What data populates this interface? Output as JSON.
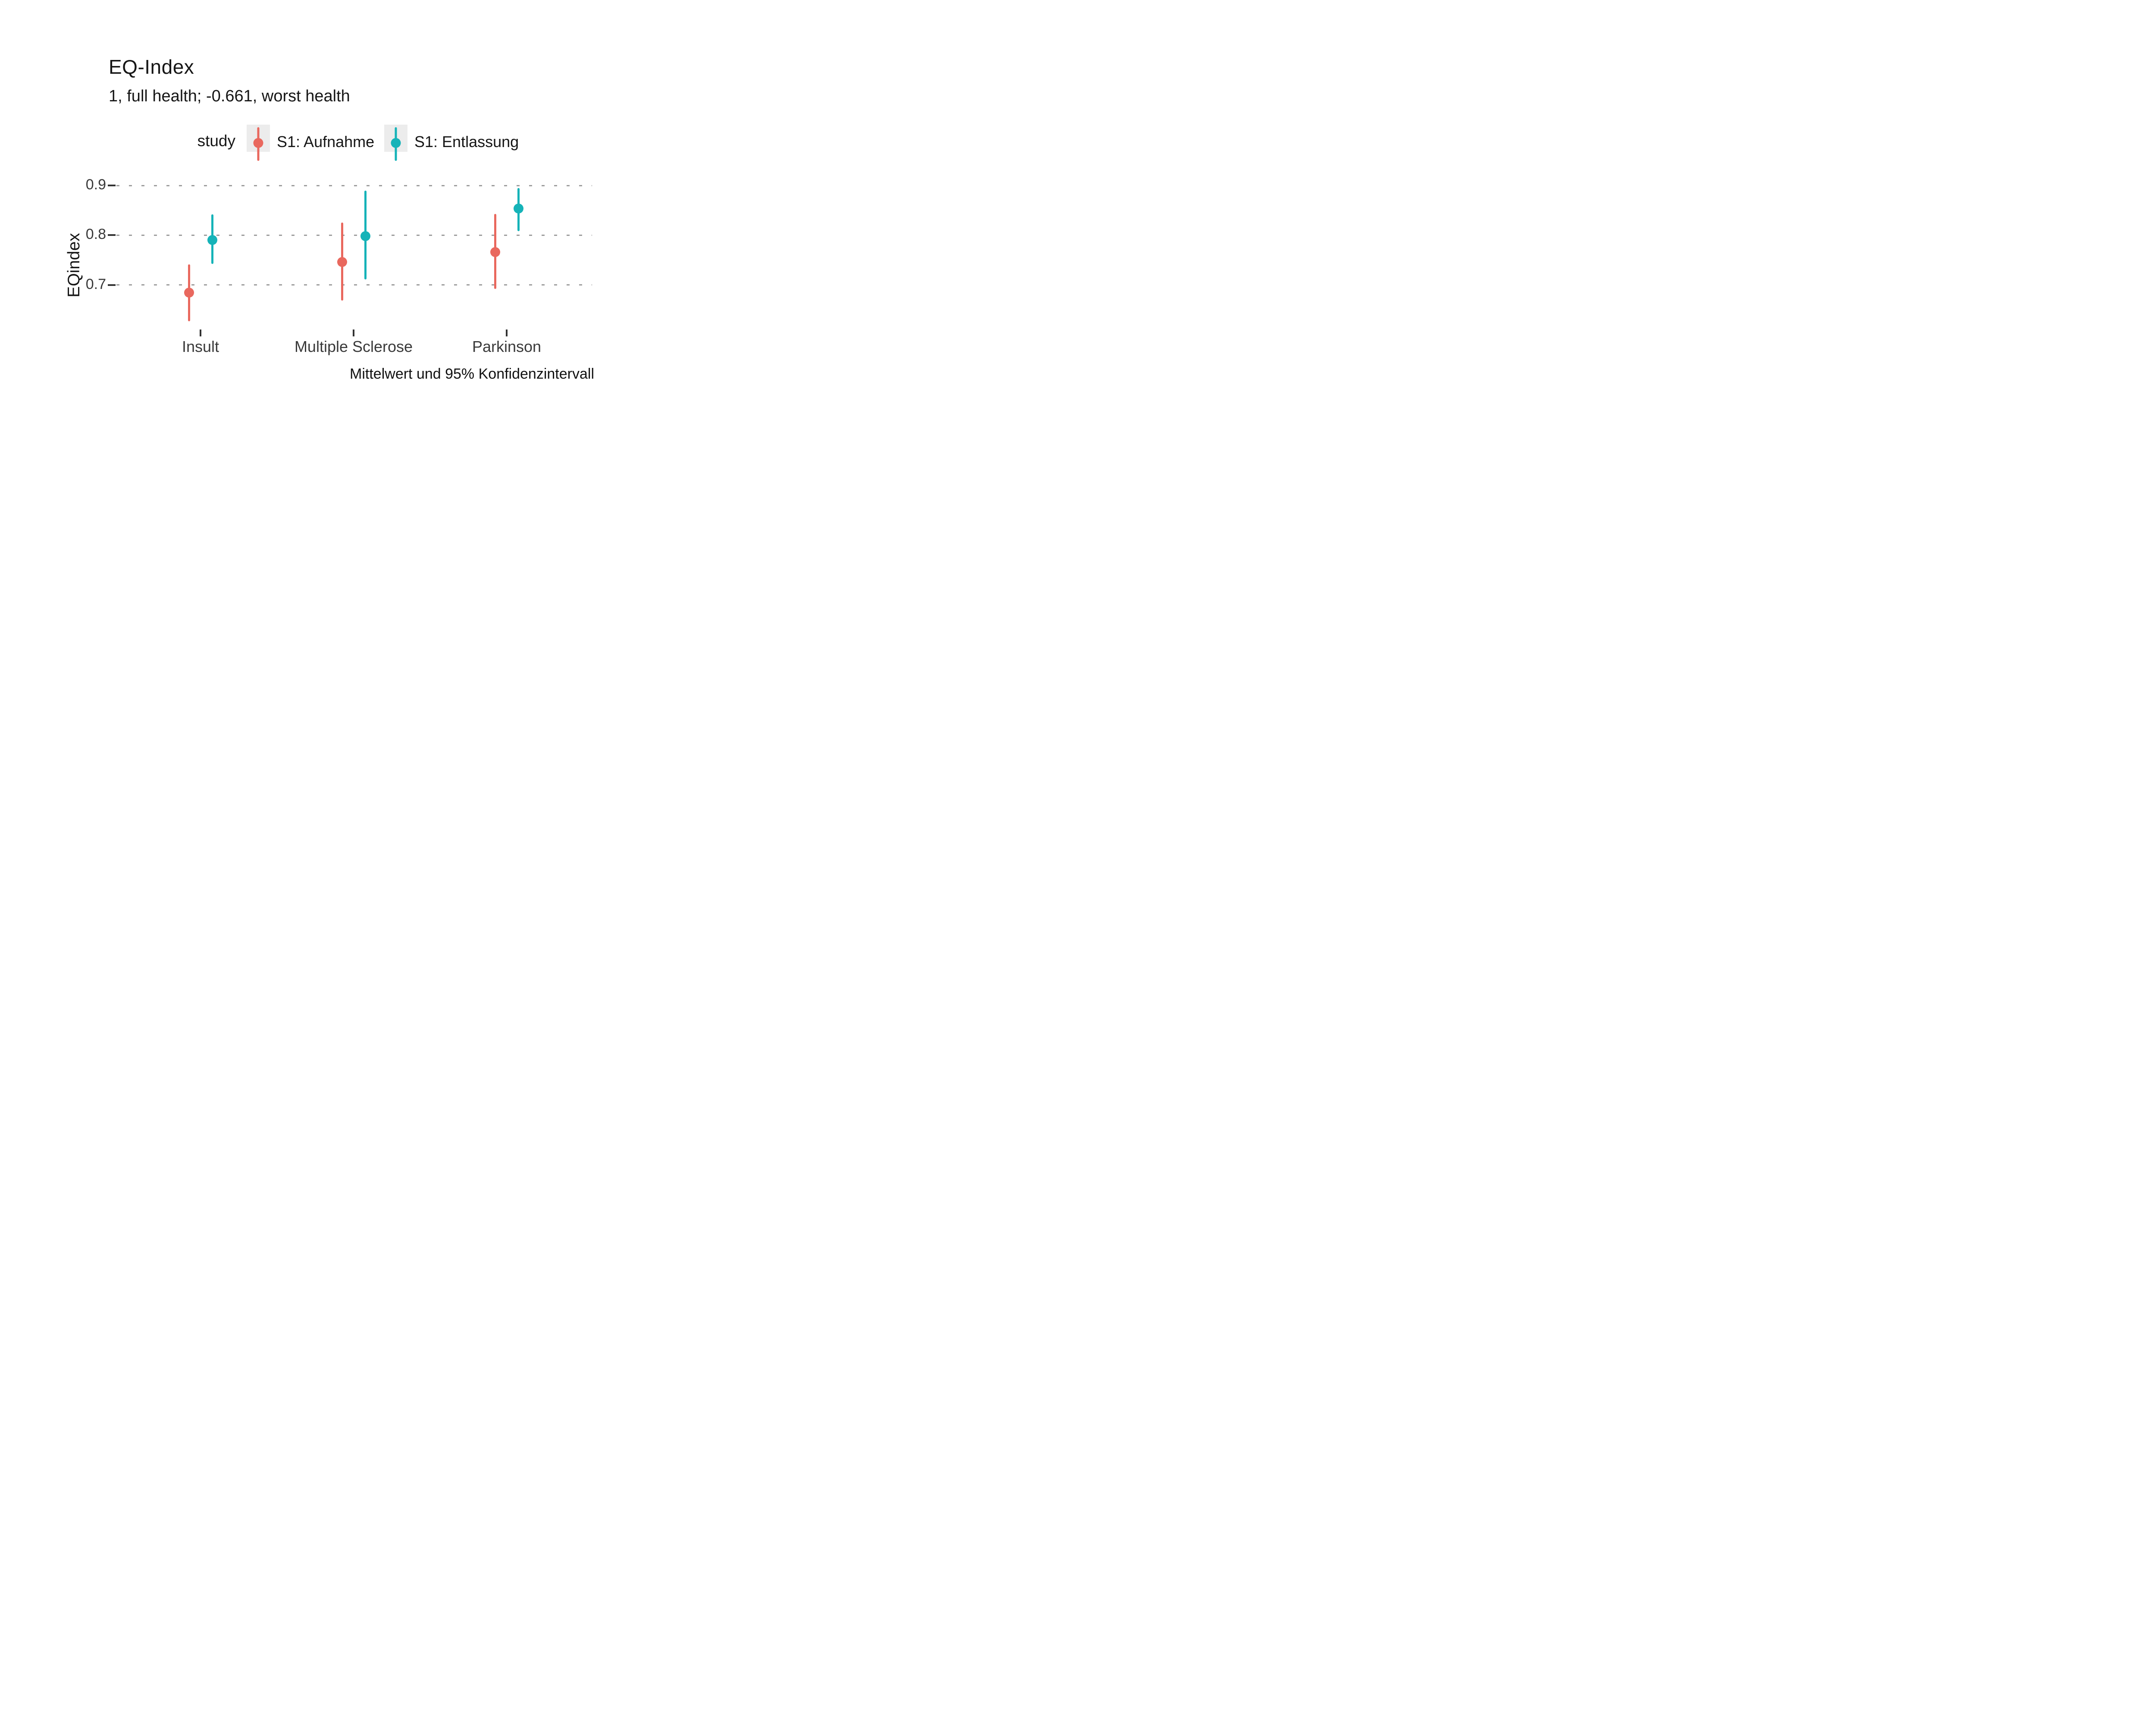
{
  "header": {
    "title": "EQ-Index",
    "subtitle": "1, full health; -0.661, worst health"
  },
  "legend": {
    "title": "study",
    "entries": [
      {
        "label": "S1: Aufnahme",
        "color": "#E9685E",
        "glyph": "pointrange-icon",
        "key_bg": "#ECECEC"
      },
      {
        "label": "S1: Entlassung",
        "color": "#15B3B8",
        "glyph": "pointrange-icon",
        "key_bg": "#ECECEC"
      }
    ]
  },
  "chart_data": {
    "type": "pointrange",
    "title": "EQ-Index",
    "subtitle": "1, full health; -0.661, worst health",
    "categories": [
      "Insult",
      "Multiple Sclerose",
      "Parkinson"
    ],
    "series": [
      {
        "name": "S1: Aufnahme",
        "color": "#E9685E",
        "points": [
          {
            "category": "Insult",
            "mean": 0.684,
            "lower": 0.627,
            "upper": 0.741
          },
          {
            "category": "Multiple Sclerose",
            "mean": 0.746,
            "lower": 0.668,
            "upper": 0.825
          },
          {
            "category": "Parkinson",
            "mean": 0.766,
            "lower": 0.692,
            "upper": 0.843
          }
        ]
      },
      {
        "name": "S1: Entlassung",
        "color": "#15B3B8",
        "points": [
          {
            "category": "Insult",
            "mean": 0.79,
            "lower": 0.742,
            "upper": 0.842
          },
          {
            "category": "Multiple Sclerose",
            "mean": 0.798,
            "lower": 0.711,
            "upper": 0.89
          },
          {
            "category": "Parkinson",
            "mean": 0.854,
            "lower": 0.808,
            "upper": 0.895
          }
        ]
      }
    ],
    "xlabel": "",
    "ylabel": "EQindex",
    "yticks": [
      "0.9",
      "0.8",
      "0.7"
    ],
    "ytick_values": [
      0.9,
      0.8,
      0.7
    ],
    "ylim": [
      0.61,
      0.92
    ],
    "grid": "horizontal-dotted",
    "grid_color": "#9E9E9E",
    "legend_position": "top",
    "caption": "Mittelwert und 95% Konfidenzintervall",
    "tick_color": "#333333",
    "axis_text_color": "#3A3A3A"
  }
}
